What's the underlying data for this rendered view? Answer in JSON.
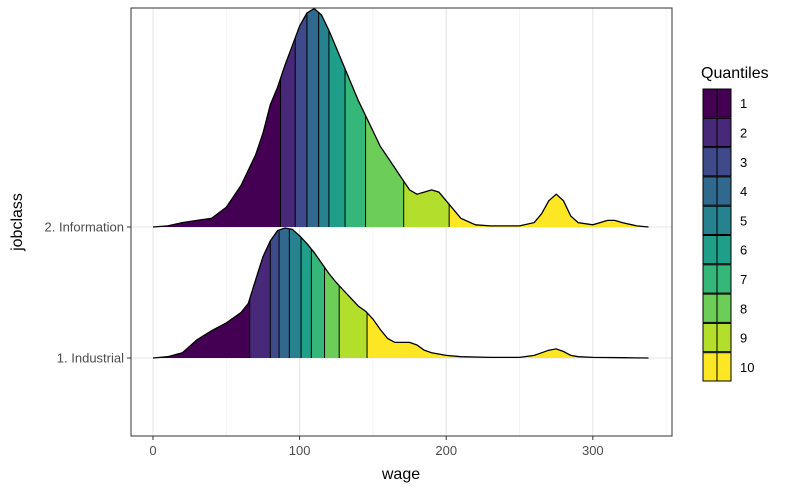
{
  "chart_data": {
    "type": "ridgeline-density-quantiles",
    "xlabel": "wage",
    "ylabel": "jobclass",
    "xlim": [
      -15,
      354
    ],
    "x_ticks": [
      0,
      100,
      200,
      300
    ],
    "y_categories": [
      "1. Industrial",
      "2. Information"
    ],
    "legend": {
      "title": "Quantiles",
      "position": "right",
      "labels": [
        "1",
        "2",
        "3",
        "4",
        "5",
        "6",
        "7",
        "8",
        "9",
        "10"
      ]
    },
    "grid": true,
    "quantile_colors": [
      "#440154",
      "#482878",
      "#3E4A89",
      "#31688E",
      "#26828E",
      "#1F9E89",
      "#35B779",
      "#6DCD59",
      "#B4DE2C",
      "#FDE725"
    ],
    "series": [
      {
        "name": "1. Industrial",
        "density_scale": 1.0,
        "quantile_breaks": [
          66,
          80,
          86,
          93,
          101,
          108,
          117,
          127,
          146
        ],
        "density_curve": [
          [
            0,
            0
          ],
          [
            10,
            0.01
          ],
          [
            20,
            0.04
          ],
          [
            30,
            0.14
          ],
          [
            40,
            0.21
          ],
          [
            50,
            0.27
          ],
          [
            60,
            0.35
          ],
          [
            65,
            0.42
          ],
          [
            70,
            0.6
          ],
          [
            75,
            0.78
          ],
          [
            80,
            0.9
          ],
          [
            85,
            0.98
          ],
          [
            90,
            1.0
          ],
          [
            95,
            0.99
          ],
          [
            100,
            0.94
          ],
          [
            105,
            0.88
          ],
          [
            110,
            0.81
          ],
          [
            115,
            0.73
          ],
          [
            120,
            0.65
          ],
          [
            125,
            0.58
          ],
          [
            130,
            0.52
          ],
          [
            135,
            0.46
          ],
          [
            140,
            0.4
          ],
          [
            145,
            0.36
          ],
          [
            150,
            0.3
          ],
          [
            155,
            0.22
          ],
          [
            160,
            0.15
          ],
          [
            165,
            0.12
          ],
          [
            170,
            0.12
          ],
          [
            175,
            0.12
          ],
          [
            180,
            0.1
          ],
          [
            185,
            0.06
          ],
          [
            190,
            0.04
          ],
          [
            200,
            0.02
          ],
          [
            210,
            0.01
          ],
          [
            230,
            0.005
          ],
          [
            250,
            0.005
          ],
          [
            260,
            0.02
          ],
          [
            265,
            0.04
          ],
          [
            270,
            0.06
          ],
          [
            275,
            0.07
          ],
          [
            280,
            0.05
          ],
          [
            285,
            0.02
          ],
          [
            290,
            0.01
          ],
          [
            300,
            0.005
          ],
          [
            320,
            0.002
          ],
          [
            338,
            0
          ]
        ]
      },
      {
        "name": "2. Information",
        "density_scale": 1.68,
        "quantile_breaks": [
          87,
          97,
          105,
          113,
          120,
          131,
          145,
          171,
          202
        ],
        "density_curve": [
          [
            0,
            0
          ],
          [
            10,
            0.005
          ],
          [
            20,
            0.02
          ],
          [
            30,
            0.03
          ],
          [
            40,
            0.04
          ],
          [
            50,
            0.09
          ],
          [
            60,
            0.19
          ],
          [
            70,
            0.33
          ],
          [
            75,
            0.43
          ],
          [
            80,
            0.56
          ],
          [
            85,
            0.64
          ],
          [
            90,
            0.74
          ],
          [
            95,
            0.83
          ],
          [
            100,
            0.92
          ],
          [
            105,
            0.98
          ],
          [
            110,
            1.0
          ],
          [
            115,
            0.97
          ],
          [
            120,
            0.9
          ],
          [
            125,
            0.82
          ],
          [
            130,
            0.74
          ],
          [
            135,
            0.66
          ],
          [
            140,
            0.58
          ],
          [
            145,
            0.51
          ],
          [
            150,
            0.44
          ],
          [
            155,
            0.37
          ],
          [
            160,
            0.32
          ],
          [
            165,
            0.27
          ],
          [
            170,
            0.22
          ],
          [
            175,
            0.17
          ],
          [
            180,
            0.15
          ],
          [
            185,
            0.16
          ],
          [
            190,
            0.17
          ],
          [
            195,
            0.16
          ],
          [
            200,
            0.12
          ],
          [
            210,
            0.04
          ],
          [
            220,
            0.01
          ],
          [
            230,
            0.005
          ],
          [
            250,
            0.005
          ],
          [
            260,
            0.02
          ],
          [
            265,
            0.06
          ],
          [
            270,
            0.12
          ],
          [
            275,
            0.15
          ],
          [
            280,
            0.12
          ],
          [
            285,
            0.05
          ],
          [
            290,
            0.02
          ],
          [
            300,
            0.01
          ],
          [
            310,
            0.03
          ],
          [
            315,
            0.03
          ],
          [
            320,
            0.02
          ],
          [
            330,
            0.005
          ],
          [
            338,
            0
          ]
        ]
      }
    ]
  }
}
